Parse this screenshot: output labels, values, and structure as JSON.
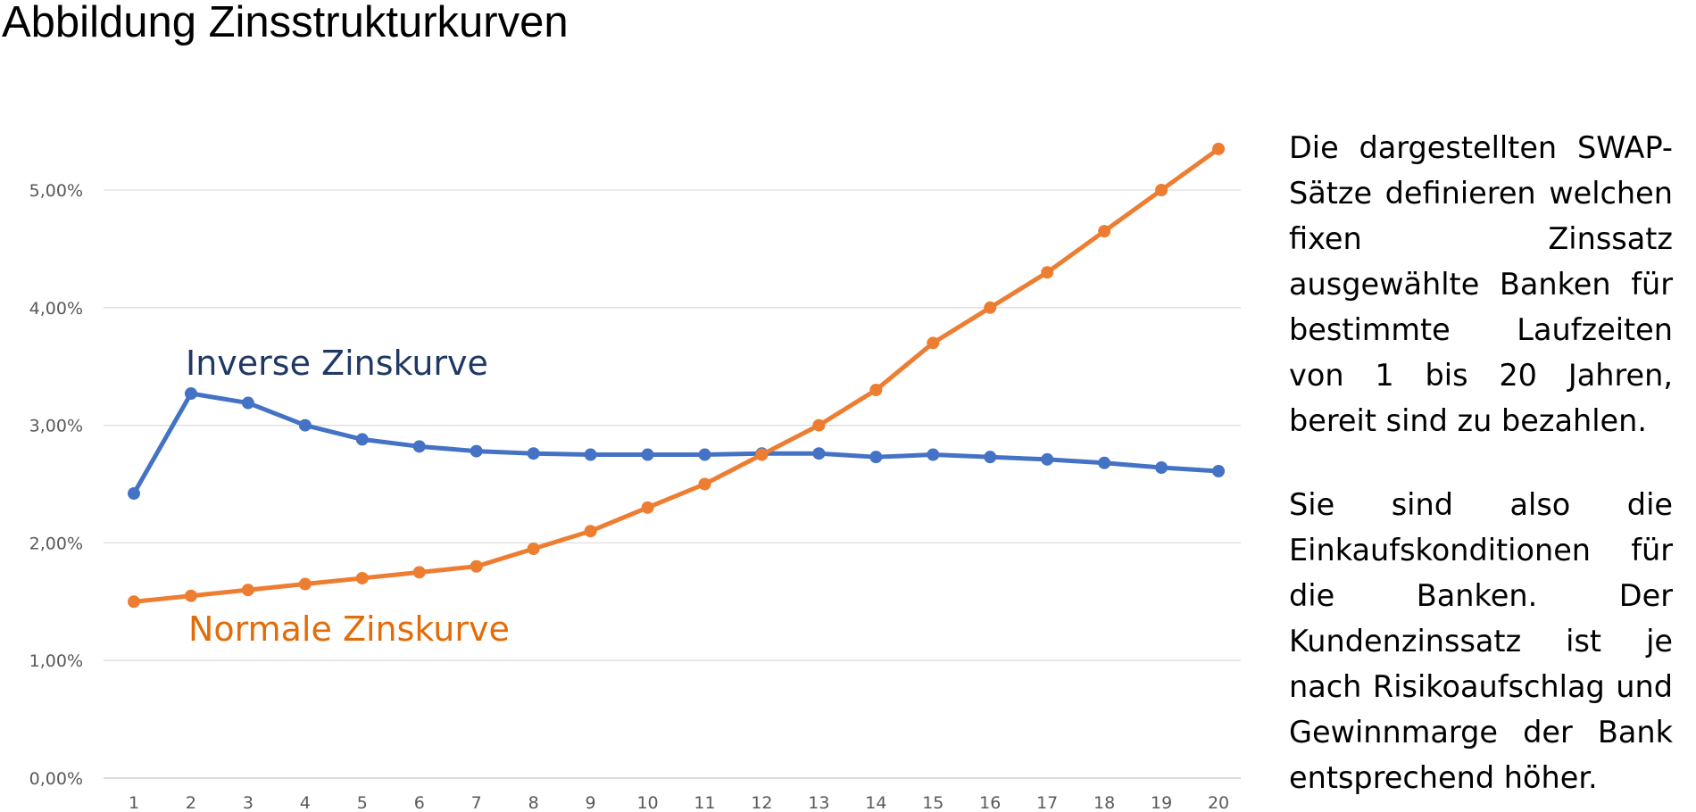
{
  "page": {
    "title": "Abbildung Zinsstrukturkurven",
    "paragraph_1": "Die dargestellten SWAP-Sätze definieren welchen fixen Zinssatz ausgewählte Banken für bestimmte Laufzeiten von 1 bis 20 Jahren, bereit sind zu bezahlen.",
    "paragraph_2": "Sie sind also die Einkaufskonditionen für die Banken. Der Kundenzinssatz ist je nach Risikoaufschlag und Gewinnmarge der Bank entsprechend höher."
  },
  "chart_data": {
    "type": "line",
    "title": "",
    "xlabel": "",
    "ylabel": "",
    "x": [
      1,
      2,
      3,
      4,
      5,
      6,
      7,
      8,
      9,
      10,
      11,
      12,
      13,
      14,
      15,
      16,
      17,
      18,
      19,
      20
    ],
    "x_ticks": [
      "1",
      "2",
      "3",
      "4",
      "5",
      "6",
      "7",
      "8",
      "9",
      "10",
      "11",
      "12",
      "13",
      "14",
      "15",
      "16",
      "17",
      "18",
      "19",
      "20"
    ],
    "ylim": [
      0,
      5.0
    ],
    "y_ticks": [
      {
        "value": 0,
        "label": "0,00%"
      },
      {
        "value": 1,
        "label": "1,00%"
      },
      {
        "value": 2,
        "label": "2,00%"
      },
      {
        "value": 3,
        "label": "3,00%"
      },
      {
        "value": 4,
        "label": "4,00%"
      },
      {
        "value": 5,
        "label": "5,00%"
      }
    ],
    "grid": true,
    "legend": "inline labels",
    "series": [
      {
        "name": "Inverse Zinskurve",
        "color": "#4472C4",
        "label_color": "#1F3864",
        "values": [
          2.42,
          3.27,
          3.19,
          3.0,
          2.88,
          2.82,
          2.78,
          2.76,
          2.75,
          2.75,
          2.75,
          2.76,
          2.76,
          2.73,
          2.75,
          2.73,
          2.71,
          2.68,
          2.64,
          2.61
        ]
      },
      {
        "name": "Normale Zinskurve",
        "color": "#ED7D31",
        "label_color": "#E36C0A",
        "values": [
          1.5,
          1.55,
          1.6,
          1.65,
          1.7,
          1.75,
          1.8,
          1.95,
          2.1,
          2.3,
          2.5,
          2.75,
          3.0,
          3.3,
          3.7,
          4.0,
          4.3,
          4.65,
          5.0,
          5.35
        ]
      }
    ]
  }
}
